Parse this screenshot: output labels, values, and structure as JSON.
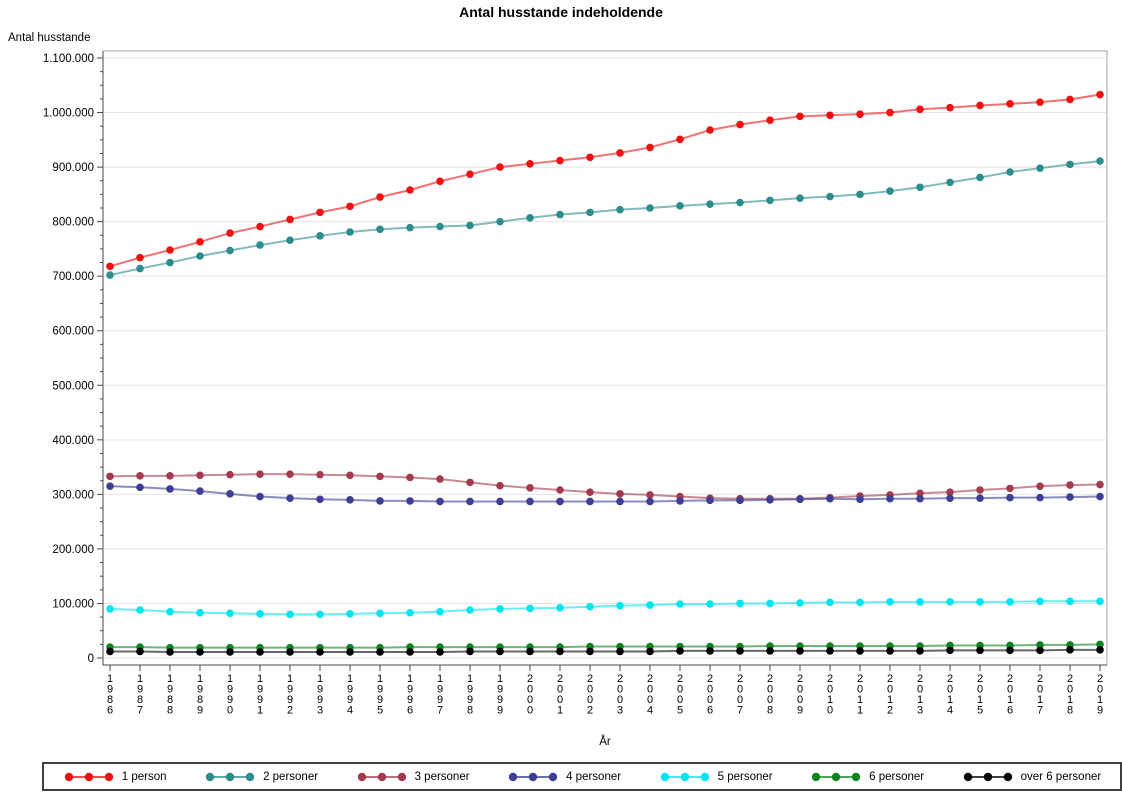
{
  "title": "Antal husstande indeholdende",
  "chart_data": {
    "type": "line",
    "title": "Antal husstande indeholdende",
    "xlabel": "År",
    "ylabel": "Antal husstande",
    "ylim": [
      0,
      1100000
    ],
    "ytick_interval": 100000,
    "y_minor_tick_interval": 25000,
    "grid": true,
    "legend_position": "bottom",
    "marker": "filled-circle",
    "x": [
      1986,
      1987,
      1988,
      1989,
      1990,
      1991,
      1992,
      1993,
      1994,
      1995,
      1996,
      1997,
      1998,
      1999,
      2000,
      2001,
      2002,
      2003,
      2004,
      2005,
      2006,
      2007,
      2008,
      2009,
      2010,
      2011,
      2012,
      2013,
      2014,
      2015,
      2016,
      2017,
      2018,
      2019
    ],
    "series": [
      {
        "name": "1 person",
        "color": "#ee1111",
        "values": [
          718000,
          734000,
          748000,
          763000,
          779000,
          791000,
          804000,
          817000,
          828000,
          845000,
          858000,
          874000,
          887000,
          900000,
          906000,
          912000,
          918000,
          926000,
          936000,
          951000,
          968000,
          978000,
          986000,
          993000,
          995000,
          997000,
          1000000,
          1006000,
          1009000,
          1013000,
          1016000,
          1019000,
          1024000,
          1033000
        ]
      },
      {
        "name": "2 personer",
        "color": "#2d8c8c",
        "values": [
          702000,
          714000,
          725000,
          737000,
          747000,
          757000,
          766000,
          774000,
          781000,
          786000,
          789000,
          791000,
          793000,
          800000,
          807000,
          813000,
          817000,
          822000,
          825000,
          829000,
          832000,
          835000,
          839000,
          843000,
          846000,
          850000,
          856000,
          863000,
          872000,
          881000,
          891000,
          898000,
          905000,
          911000
        ]
      },
      {
        "name": "3 personer",
        "color": "#a33b4e",
        "values": [
          333000,
          334000,
          334000,
          335000,
          336000,
          337000,
          337000,
          336000,
          335000,
          333000,
          331000,
          328000,
          322000,
          316000,
          312000,
          308000,
          304000,
          301000,
          299000,
          296000,
          293000,
          292000,
          292000,
          292000,
          294000,
          297000,
          299000,
          302000,
          304000,
          308000,
          311000,
          315000,
          317000,
          318000
        ]
      },
      {
        "name": "4 personer",
        "color": "#3c3f94",
        "values": [
          315000,
          313000,
          310000,
          306000,
          301000,
          296000,
          293000,
          291000,
          290000,
          288000,
          288000,
          287000,
          287000,
          287000,
          287000,
          287000,
          287000,
          287000,
          287000,
          288000,
          289000,
          289000,
          290000,
          291000,
          292000,
          291000,
          292000,
          292000,
          293000,
          293000,
          294000,
          294000,
          295000,
          296000
        ]
      },
      {
        "name": "5 personer",
        "color": "#00e5ee",
        "values": [
          90000,
          88000,
          85000,
          83000,
          82000,
          81000,
          80000,
          80000,
          81000,
          82000,
          83000,
          85000,
          88000,
          90000,
          91000,
          92000,
          94000,
          96000,
          97000,
          99000,
          99000,
          100000,
          100000,
          101000,
          102000,
          102000,
          103000,
          103000,
          103000,
          103000,
          103000,
          104000,
          104000,
          104000
        ]
      },
      {
        "name": "6 personer",
        "color": "#0e8420",
        "values": [
          20000,
          20000,
          19000,
          19000,
          19000,
          19000,
          19000,
          19000,
          19000,
          19000,
          20000,
          20000,
          20000,
          20000,
          20000,
          20000,
          21000,
          21000,
          21000,
          21000,
          21000,
          21000,
          22000,
          22000,
          22000,
          22000,
          22000,
          22000,
          23000,
          23000,
          23000,
          24000,
          24000,
          25000
        ]
      },
      {
        "name": "over 6 personer",
        "color": "#000000",
        "values": [
          12000,
          12000,
          11000,
          11000,
          11000,
          11000,
          11000,
          11000,
          11000,
          11000,
          11000,
          11000,
          12000,
          12000,
          12000,
          12000,
          12000,
          12000,
          12000,
          13000,
          13000,
          13000,
          13000,
          13000,
          13000,
          13000,
          13000,
          13000,
          14000,
          14000,
          14000,
          14000,
          15000,
          15000
        ]
      }
    ]
  }
}
